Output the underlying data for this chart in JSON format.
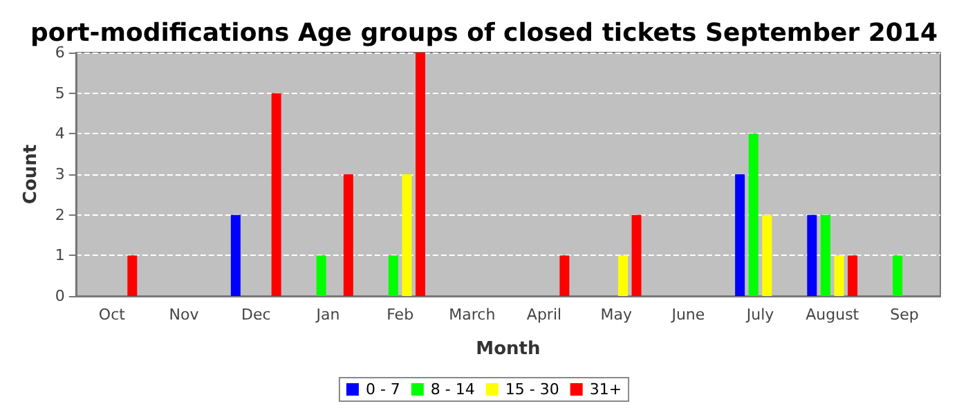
{
  "chart_data": {
    "type": "bar",
    "title": "port-modifications Age groups of closed tickets September 2014",
    "xlabel": "Month",
    "ylabel": "Count",
    "categories": [
      "Oct",
      "Nov",
      "Dec",
      "Jan",
      "Feb",
      "March",
      "April",
      "May",
      "June",
      "July",
      "August",
      "Sep"
    ],
    "series": [
      {
        "name": "0 - 7",
        "color": "#0000ff",
        "values": [
          0,
          0,
          2,
          0,
          0,
          0,
          0,
          0,
          0,
          3,
          2,
          0
        ]
      },
      {
        "name": "8 - 14",
        "color": "#00ff00",
        "values": [
          0,
          0,
          0,
          1,
          1,
          0,
          0,
          0,
          0,
          4,
          2,
          1
        ]
      },
      {
        "name": "15 - 30",
        "color": "#ffff00",
        "values": [
          0,
          0,
          0,
          0,
          3,
          0,
          0,
          1,
          0,
          2,
          1,
          0
        ]
      },
      {
        "name": "31+",
        "color": "#ff0000",
        "values": [
          1,
          0,
          5,
          3,
          6,
          0,
          1,
          2,
          0,
          0,
          1,
          0
        ]
      }
    ],
    "ylim": [
      0,
      6
    ],
    "yticks": [
      0,
      1,
      2,
      3,
      4,
      5,
      6
    ],
    "grid": "y",
    "legend": "bottom"
  }
}
